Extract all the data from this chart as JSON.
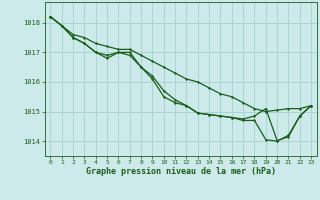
{
  "xlabel": "Graphe pression niveau de la mer (hPa)",
  "bg_color": "#cceaea",
  "line_color": "#1a5e1a",
  "grid_color": "#aad4d4",
  "label_color": "#1a5e1a",
  "xlim": [
    -0.5,
    23.5
  ],
  "ylim": [
    1013.5,
    1018.7
  ],
  "yticks": [
    1014,
    1015,
    1016,
    1017,
    1018
  ],
  "xticks": [
    0,
    1,
    2,
    3,
    4,
    5,
    6,
    7,
    8,
    9,
    10,
    11,
    12,
    13,
    14,
    15,
    16,
    17,
    18,
    19,
    20,
    21,
    22,
    23
  ],
  "line_straight_x": [
    0,
    1,
    2,
    3,
    4,
    5,
    6,
    7,
    8,
    9,
    10,
    11,
    12,
    13,
    14,
    15,
    16,
    17,
    18,
    19,
    20,
    21,
    22,
    23
  ],
  "line_straight_y": [
    1018.2,
    1017.9,
    1017.6,
    1017.5,
    1017.3,
    1017.2,
    1017.1,
    1017.1,
    1016.9,
    1016.7,
    1016.5,
    1016.3,
    1016.1,
    1016.0,
    1015.8,
    1015.6,
    1015.5,
    1015.3,
    1015.1,
    1015.0,
    1015.05,
    1015.1,
    1015.1,
    1015.2
  ],
  "line_curve1_x": [
    0,
    1,
    2,
    3,
    4,
    5,
    6,
    7,
    8,
    9,
    10,
    11,
    12,
    13,
    14,
    15,
    16,
    17,
    18,
    19,
    20,
    21,
    22,
    23
  ],
  "line_curve1_y": [
    1018.2,
    1017.9,
    1017.5,
    1017.3,
    1017.0,
    1016.9,
    1017.0,
    1016.9,
    1016.5,
    1016.1,
    1015.5,
    1015.3,
    1015.2,
    1014.95,
    1014.9,
    1014.85,
    1014.8,
    1014.7,
    1014.7,
    1014.05,
    1014.0,
    1014.2,
    1014.85,
    1015.2
  ],
  "line_curve2_x": [
    0,
    1,
    2,
    3,
    4,
    5,
    6,
    7,
    8,
    9,
    10,
    11,
    12,
    13,
    14,
    15,
    16,
    17,
    18,
    19,
    20,
    21,
    22,
    23
  ],
  "line_curve2_y": [
    1018.2,
    1017.9,
    1017.5,
    1017.3,
    1017.0,
    1016.8,
    1017.0,
    1017.0,
    1016.5,
    1016.2,
    1015.7,
    1015.4,
    1015.2,
    1014.95,
    1014.9,
    1014.85,
    1014.8,
    1014.75,
    1014.85,
    1015.1,
    1014.02,
    1014.15,
    1014.85,
    1015.2
  ]
}
